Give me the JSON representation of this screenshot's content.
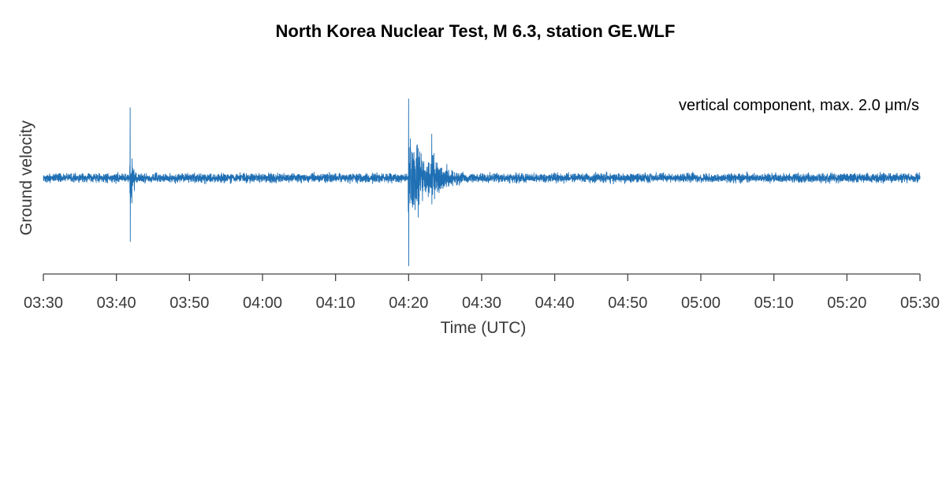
{
  "chart_data": {
    "type": "line",
    "title": "North Korea Nuclear Test, M 6.3, station GE.WLF",
    "annotation": {
      "prefix": "vertical component, max. 2.0 ",
      "unit": "μm/s"
    },
    "xlabel": "Time (UTC)",
    "ylabel": "Ground velocity",
    "x_ticks": [
      "03:30",
      "03:40",
      "03:50",
      "04:00",
      "04:10",
      "04:20",
      "04:30",
      "04:40",
      "04:50",
      "05:00",
      "05:10",
      "05:20",
      "05:30"
    ],
    "xlim": [
      "03:30",
      "05:30"
    ],
    "ylim": [
      -2.0,
      2.0
    ],
    "grid": false,
    "y_axis_visible": false,
    "series": [
      {
        "color": "#1f6fb4",
        "peak_abs_velocity": 2.0,
        "noise_level": 0.15,
        "events": [
          {
            "time": "03:41:53",
            "peak_up": 1.6,
            "peak_down": -1.45,
            "coda_min": 1.2
          },
          {
            "time": "04:20:00",
            "peak_up": 1.8,
            "peak_down": -2.0,
            "coda_min": 8
          },
          {
            "time": "04:23:10",
            "peak_up": 1.0,
            "peak_down": -0.6,
            "coda_min": 5
          }
        ]
      }
    ],
    "colors": {
      "trace": "#1f6fb4",
      "axis": "#444444",
      "text": "#3a3a3a"
    }
  }
}
